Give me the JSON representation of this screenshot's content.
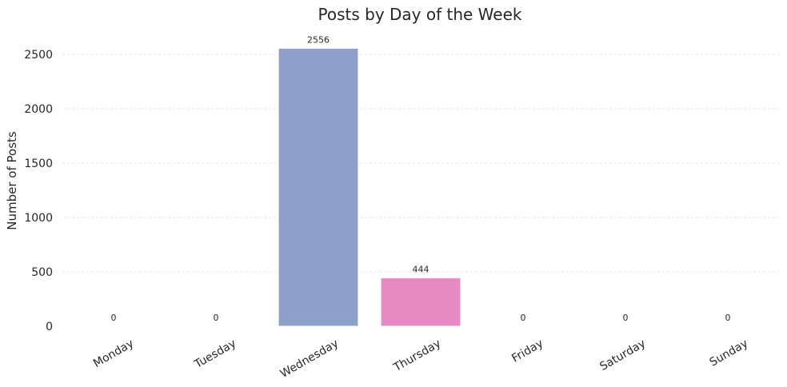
{
  "chart_data": {
    "type": "bar",
    "title": "Posts by Day of the Week",
    "xlabel": "",
    "ylabel": "Number of Posts",
    "categories": [
      "Monday",
      "Tuesday",
      "Wednesday",
      "Thursday",
      "Friday",
      "Saturday",
      "Sunday"
    ],
    "values": [
      0,
      0,
      2556,
      444,
      0,
      0,
      0
    ],
    "colors": [
      "#66c2a5",
      "#fc8d62",
      "#8da0cb",
      "#e78ac3",
      "#a6d854",
      "#ffd92f",
      "#e5c494"
    ],
    "yticks": [
      0,
      500,
      1000,
      1500,
      2000,
      2500
    ],
    "ylim": [
      0,
      2684
    ],
    "grid": true,
    "legend": "none"
  }
}
